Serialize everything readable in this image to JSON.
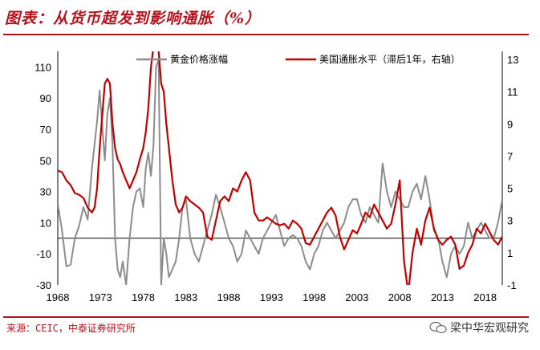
{
  "header": {
    "title": "图表：从货币超发到影响通胀（%）"
  },
  "footer": {
    "source": "来源：CEIC，中泰证券研究所",
    "watermark": "梁中华宏观研究"
  },
  "colors": {
    "gold": "#8c8c8c",
    "cpi": "#c00000",
    "accent": "#b5121b"
  },
  "chart_data": {
    "type": "line",
    "title": "图表：从货币超发到影响通胀（%）",
    "x_ticks": [
      "1968",
      "1973",
      "1978",
      "1983",
      "1988",
      "1993",
      "1998",
      "2003",
      "2008",
      "2013",
      "2018"
    ],
    "x_range": [
      1968,
      2020
    ],
    "y_left": {
      "ticks": [
        "110",
        "90",
        "70",
        "50",
        "30",
        "10",
        "-10",
        "-30"
      ],
      "lim": [
        -30,
        120
      ]
    },
    "y_right": {
      "ticks": [
        "13",
        "11",
        "9",
        "7",
        "5",
        "3",
        "1",
        "-1"
      ],
      "lim": [
        -1,
        13.5
      ]
    },
    "legend_position": "top",
    "series": [
      {
        "name": "黄金价格涨幅",
        "axis": "left",
        "color": "#8c8c8c",
        "x": [
          1968,
          1968.5,
          1969,
          1969.5,
          1970,
          1970.5,
          1971,
          1971.5,
          1972,
          1972.3,
          1972.6,
          1972.9,
          1973.2,
          1973.5,
          1973.8,
          1974.1,
          1974.4,
          1974.7,
          1975,
          1975.3,
          1975.6,
          1976,
          1976.4,
          1976.8,
          1977.2,
          1977.6,
          1978,
          1978.3,
          1978.6,
          1978.9,
          1979.2,
          1979.5,
          1979.8,
          1980.1,
          1980.4,
          1980.7,
          1981,
          1981.4,
          1981.8,
          1982.2,
          1982.6,
          1983,
          1983.5,
          1984,
          1984.5,
          1985,
          1985.5,
          1986,
          1986.5,
          1987,
          1987.5,
          1988,
          1988.5,
          1989,
          1989.5,
          1990,
          1990.5,
          1991,
          1991.5,
          1992,
          1992.5,
          1993,
          1993.5,
          1994,
          1994.5,
          1995,
          1995.5,
          1996,
          1996.5,
          1997,
          1997.5,
          1998,
          1998.5,
          1999,
          1999.5,
          2000,
          2000.5,
          2001,
          2001.5,
          2002,
          2002.5,
          2003,
          2003.5,
          2004,
          2004.5,
          2005,
          2005.5,
          2006,
          2006.5,
          2007,
          2007.5,
          2008,
          2008.5,
          2009,
          2009.5,
          2010,
          2010.5,
          2011,
          2011.5,
          2012,
          2012.5,
          2013,
          2013.5,
          2014,
          2014.5,
          2015,
          2015.5,
          2016,
          2016.5,
          2017,
          2017.5,
          2018,
          2018.5,
          2019,
          2019.5,
          2020
        ],
        "values": [
          22,
          5,
          -18,
          -17,
          0,
          8,
          20,
          12,
          45,
          60,
          75,
          95,
          72,
          50,
          80,
          90,
          60,
          0,
          -20,
          -25,
          -15,
          -30,
          0,
          20,
          30,
          32,
          20,
          45,
          55,
          40,
          60,
          110,
          115,
          -30,
          0,
          -10,
          -25,
          -20,
          -15,
          0,
          20,
          25,
          0,
          -10,
          -15,
          -5,
          5,
          15,
          28,
          20,
          10,
          0,
          -5,
          -15,
          -10,
          5,
          0,
          -5,
          -10,
          0,
          5,
          10,
          15,
          5,
          -5,
          0,
          2,
          0,
          -5,
          -15,
          -20,
          -10,
          -5,
          5,
          10,
          5,
          0,
          5,
          10,
          20,
          25,
          25,
          15,
          10,
          20,
          15,
          10,
          48,
          30,
          20,
          30,
          25,
          20,
          20,
          30,
          35,
          25,
          40,
          25,
          5,
          0,
          -15,
          -25,
          -10,
          -5,
          -10,
          -5,
          10,
          0,
          5,
          10,
          5,
          0,
          0,
          10,
          25
        ]
      },
      {
        "name": "美国通胀水平（滞后1年，右轴）",
        "axis": "right",
        "color": "#c00000",
        "x": [
          1968,
          1968.5,
          1969,
          1969.5,
          1970,
          1970.5,
          1971,
          1971.5,
          1972,
          1972.3,
          1972.6,
          1972.9,
          1973.2,
          1973.5,
          1973.8,
          1974.1,
          1974.4,
          1974.7,
          1975,
          1975.3,
          1975.6,
          1976,
          1976.4,
          1976.8,
          1977.2,
          1977.6,
          1978,
          1978.3,
          1978.6,
          1978.9,
          1979.2,
          1979.5,
          1979.8,
          1980.1,
          1980.4,
          1980.7,
          1981,
          1981.4,
          1981.8,
          1982.2,
          1982.6,
          1983,
          1983.5,
          1984,
          1984.5,
          1985,
          1985.5,
          1986,
          1986.5,
          1987,
          1987.5,
          1988,
          1988.5,
          1989,
          1989.5,
          1990,
          1990.5,
          1991,
          1991.5,
          1992,
          1992.5,
          1993,
          1993.5,
          1994,
          1994.5,
          1995,
          1995.5,
          1996,
          1996.5,
          1997,
          1997.5,
          1998,
          1998.5,
          1999,
          1999.5,
          2000,
          2000.5,
          2001,
          2001.5,
          2002,
          2002.5,
          2003,
          2003.5,
          2004,
          2004.5,
          2005,
          2005.5,
          2006,
          2006.5,
          2007,
          2007.5,
          2008,
          2008.5,
          2009,
          2009.5,
          2010,
          2010.5,
          2011,
          2011.5,
          2012,
          2012.5,
          2013,
          2013.5,
          2014,
          2014.5,
          2015,
          2015.5,
          2016,
          2016.5,
          2017,
          2017.5,
          2018,
          2018.5,
          2019,
          2019.5,
          2020
        ],
        "values": [
          6.1,
          6.0,
          5.5,
          5.2,
          4.7,
          4.6,
          4.4,
          3.8,
          3.5,
          3.8,
          5.0,
          7.5,
          9.5,
          11.5,
          11.8,
          11.5,
          9.0,
          7.5,
          6.8,
          6.5,
          6.0,
          5.5,
          5.0,
          5.5,
          6.0,
          6.8,
          7.5,
          8.5,
          10.0,
          12.5,
          13.8,
          14.5,
          13.5,
          11.5,
          11.0,
          9.0,
          7.5,
          5.5,
          4.0,
          3.5,
          3.8,
          4.5,
          4.2,
          4.0,
          3.8,
          3.5,
          2.0,
          1.8,
          3.0,
          4.2,
          4.5,
          4.2,
          5.0,
          4.8,
          5.5,
          6.0,
          5.5,
          3.5,
          3.0,
          3.0,
          3.2,
          3.0,
          2.8,
          2.7,
          2.8,
          2.5,
          3.0,
          2.8,
          2.5,
          1.6,
          1.5,
          2.0,
          2.5,
          3.0,
          3.5,
          3.8,
          3.3,
          2.0,
          1.2,
          1.8,
          2.4,
          2.2,
          2.8,
          3.5,
          3.2,
          4.0,
          3.5,
          3.0,
          2.5,
          2.8,
          4.0,
          5.5,
          0.5,
          -1.5,
          1.0,
          2.5,
          1.5,
          3.0,
          3.8,
          2.5,
          1.8,
          1.5,
          1.8,
          2.0,
          1.5,
          0.0,
          0.2,
          1.0,
          1.5,
          2.5,
          2.2,
          2.8,
          2.3,
          1.8,
          1.5,
          2.0
        ]
      }
    ]
  }
}
